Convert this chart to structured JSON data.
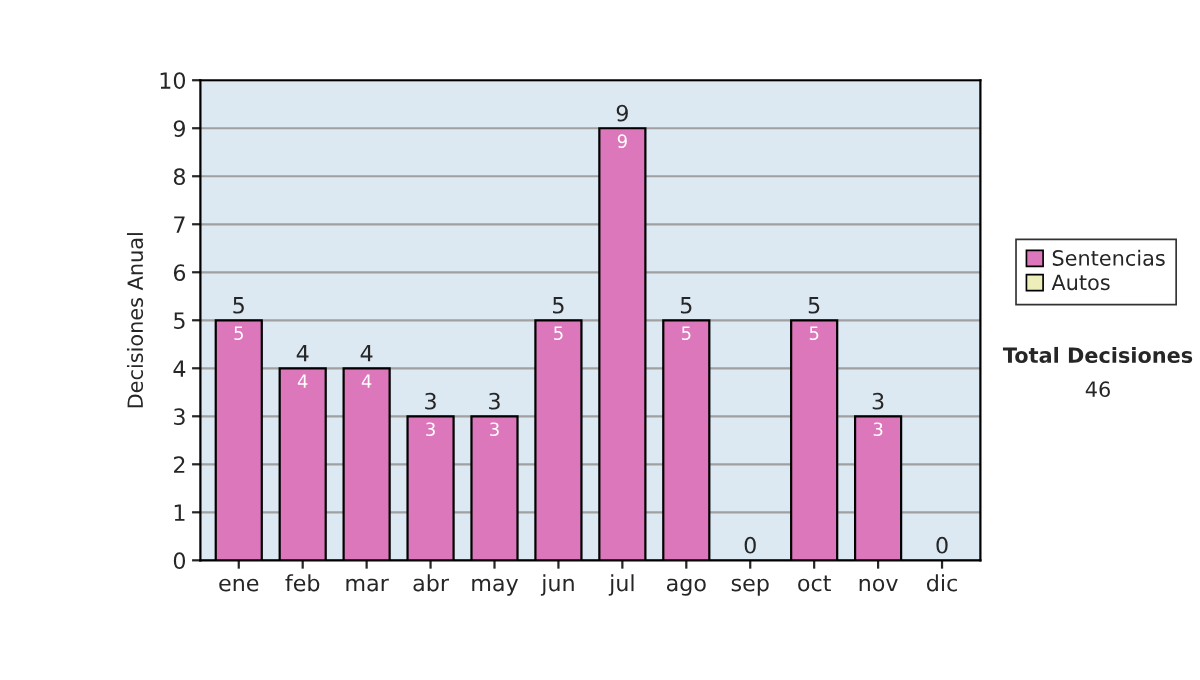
{
  "chart_data": {
    "type": "bar",
    "stacked": true,
    "ylabel": "Decisiones Anual",
    "categories": [
      "ene",
      "feb",
      "mar",
      "abr",
      "may",
      "jun",
      "jul",
      "ago",
      "sep",
      "oct",
      "nov",
      "dic"
    ],
    "series": [
      {
        "name": "Sentencias",
        "color": "#dd77bb",
        "values": [
          5,
          4,
          4,
          3,
          3,
          5,
          9,
          5,
          0,
          5,
          3,
          0
        ],
        "value_labels": [
          "5",
          "4",
          "4",
          "3",
          "3",
          "5",
          "9",
          "5",
          null,
          "5",
          "3",
          null
        ]
      },
      {
        "name": "Autos",
        "color": "#eeeebb",
        "values": [
          0,
          0,
          0,
          0,
          0,
          0,
          0,
          0,
          0,
          0,
          0,
          0
        ]
      }
    ],
    "totals": [
      "5",
      "4",
      "4",
      "3",
      "3",
      "5",
      "9",
      "5",
      "0",
      "5",
      "3",
      "0"
    ],
    "ylim": [
      0,
      10
    ],
    "yticks": [
      0,
      1,
      2,
      3,
      4,
      5,
      6,
      7,
      8,
      9,
      10
    ],
    "grid": "y",
    "legend": "right",
    "annotations": [
      "Total Decisiones",
      "46"
    ]
  }
}
